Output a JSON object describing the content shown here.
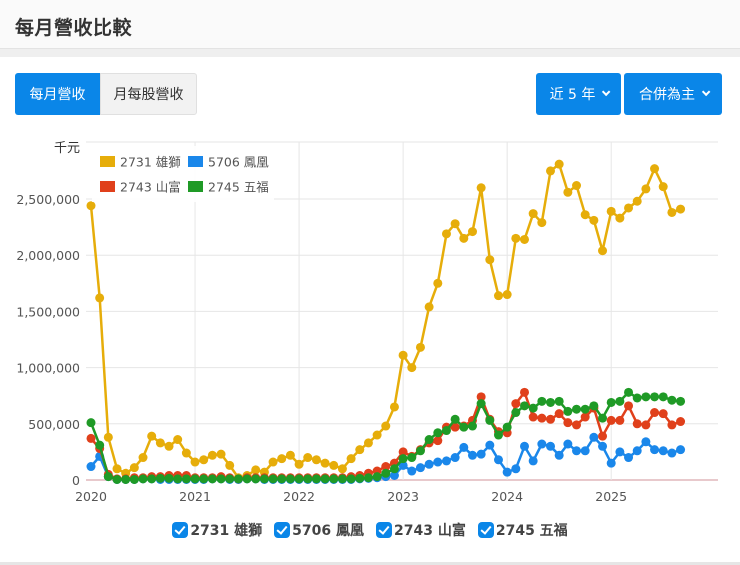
{
  "header": {
    "title": "每月營收比較"
  },
  "toolbar": {
    "tabs": [
      {
        "label": "每月營收",
        "active": true
      },
      {
        "label": "月每股營收",
        "active": false
      }
    ],
    "period_dropdown": "近 5 年",
    "basis_dropdown": "合併為主"
  },
  "colors": {
    "accent": "#0a86e8",
    "s2731": "#e6ad0a",
    "s5706": "#1a87ea",
    "s2743": "#e0401b",
    "s2745": "#1f9a26"
  },
  "chart_data": {
    "type": "line",
    "title": "每月營收比較",
    "ylabel": "千元",
    "xlabel": "",
    "ylim": [
      0,
      2900000
    ],
    "yticks": [
      0,
      500000,
      1000000,
      1500000,
      2000000,
      2500000
    ],
    "ytick_labels": [
      "0",
      "500,000",
      "1,000,000",
      "1,500,000",
      "2,000,000",
      "2,500,000"
    ],
    "xtick_labels": [
      "2020",
      "2021",
      "2022",
      "2023",
      "2024",
      "2025"
    ],
    "x_start": "2020-01",
    "x_end": "2025-09",
    "grid": true,
    "legend_position": "top-left inside",
    "series": [
      {
        "name": "2731 雄獅",
        "color": "#e6ad0a",
        "values": [
          2440000,
          1620000,
          380000,
          100000,
          60000,
          110000,
          200000,
          390000,
          330000,
          300000,
          360000,
          240000,
          160000,
          180000,
          220000,
          230000,
          130000,
          20000,
          40000,
          90000,
          70000,
          160000,
          190000,
          220000,
          140000,
          200000,
          180000,
          150000,
          130000,
          100000,
          190000,
          270000,
          330000,
          400000,
          480000,
          650000,
          1110000,
          1000000,
          1180000,
          1540000,
          1750000,
          2190000,
          2280000,
          2150000,
          2210000,
          2600000,
          1960000,
          1640000,
          1650000,
          2150000,
          2140000,
          2370000,
          2290000,
          2750000,
          2810000,
          2560000,
          2620000,
          2360000,
          2310000,
          2040000,
          2390000,
          2330000,
          2420000,
          2480000,
          2590000,
          2770000,
          2610000,
          2380000,
          2410000
        ]
      },
      {
        "name": "5706 鳳凰",
        "color": "#1a87ea",
        "values": [
          120000,
          210000,
          30000,
          5000,
          5000,
          5000,
          10000,
          10000,
          5000,
          5000,
          5000,
          5000,
          5000,
          5000,
          10000,
          10000,
          5000,
          5000,
          10000,
          10000,
          5000,
          5000,
          5000,
          5000,
          5000,
          5000,
          5000,
          5000,
          5000,
          5000,
          5000,
          10000,
          15000,
          20000,
          30000,
          40000,
          130000,
          80000,
          110000,
          140000,
          160000,
          170000,
          200000,
          290000,
          220000,
          230000,
          310000,
          180000,
          70000,
          100000,
          300000,
          170000,
          320000,
          300000,
          220000,
          320000,
          260000,
          260000,
          380000,
          300000,
          150000,
          250000,
          200000,
          260000,
          340000,
          270000,
          260000,
          240000,
          270000
        ]
      },
      {
        "name": "2743 山富",
        "color": "#e0401b",
        "values": [
          370000,
          280000,
          50000,
          10000,
          10000,
          20000,
          20000,
          30000,
          30000,
          40000,
          40000,
          40000,
          20000,
          20000,
          20000,
          30000,
          20000,
          10000,
          20000,
          20000,
          20000,
          20000,
          20000,
          20000,
          20000,
          20000,
          20000,
          20000,
          20000,
          20000,
          30000,
          40000,
          60000,
          80000,
          120000,
          150000,
          250000,
          210000,
          270000,
          330000,
          350000,
          470000,
          470000,
          480000,
          530000,
          740000,
          540000,
          430000,
          420000,
          680000,
          780000,
          560000,
          550000,
          540000,
          590000,
          510000,
          490000,
          560000,
          640000,
          390000,
          530000,
          530000,
          660000,
          500000,
          490000,
          600000,
          590000,
          490000,
          520000
        ]
      },
      {
        "name": "2745 五福",
        "color": "#1f9a26",
        "values": [
          510000,
          310000,
          30000,
          5000,
          5000,
          5000,
          10000,
          10000,
          15000,
          15000,
          10000,
          10000,
          10000,
          10000,
          10000,
          10000,
          10000,
          10000,
          10000,
          10000,
          10000,
          10000,
          10000,
          10000,
          10000,
          10000,
          10000,
          10000,
          10000,
          10000,
          10000,
          15000,
          20000,
          30000,
          60000,
          100000,
          190000,
          200000,
          260000,
          360000,
          420000,
          440000,
          540000,
          470000,
          480000,
          680000,
          530000,
          400000,
          470000,
          600000,
          660000,
          640000,
          700000,
          690000,
          700000,
          610000,
          630000,
          630000,
          660000,
          550000,
          690000,
          700000,
          780000,
          730000,
          740000,
          740000,
          740000,
          710000,
          700000
        ]
      }
    ]
  },
  "legend_bottom": [
    {
      "label": "2731 雄獅",
      "checked": true
    },
    {
      "label": "5706 鳳凰",
      "checked": true
    },
    {
      "label": "2743 山富",
      "checked": true
    },
    {
      "label": "2745 五福",
      "checked": true
    }
  ]
}
